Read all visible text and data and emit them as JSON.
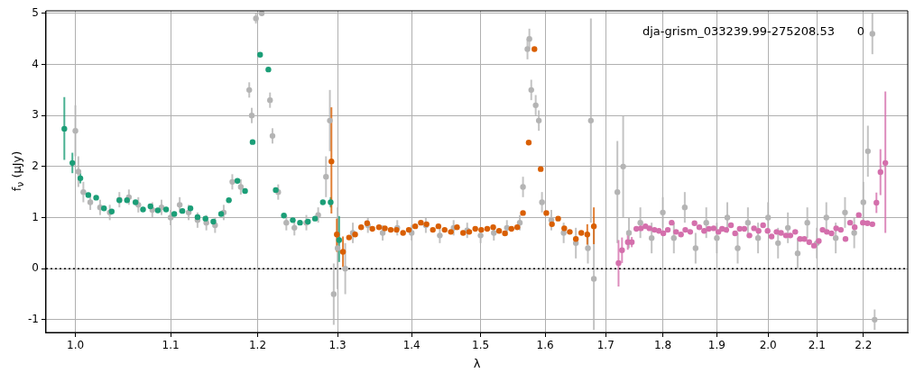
{
  "chart_data": {
    "type": "scatter",
    "xlabel": "λ",
    "ylabel": "f$_{ν}$ (μJy)",
    "log": "x",
    "grid": true,
    "legend": false,
    "marker": "circle",
    "xlim": [
      0.971,
      2.3
    ],
    "xticks": [
      {
        "value": 1,
        "label": "1.0"
      },
      1.1,
      1.2,
      1.3,
      1.4,
      1.5,
      1.6,
      1.7,
      1.8,
      1.9,
      {
        "value": 2,
        "label": "2.0"
      },
      2.1,
      2.2
    ],
    "ylim": [
      -1.25,
      5.05
    ],
    "yticks": [
      -1,
      0,
      1,
      2,
      3,
      4,
      5
    ],
    "ref_lines": [
      {
        "axis": "y",
        "value": 0,
        "color": "#000000",
        "line_style": "dotted"
      }
    ],
    "annotations": [
      "dja-grism_033239.99-275208.53      0"
    ],
    "series": [
      {
        "color": "#b4b4b4",
        "x": [
          1.0,
          1.003,
          1.008,
          1.015,
          1.025,
          1.035,
          1.045,
          1.055,
          1.065,
          1.08,
          1.09,
          1.1,
          1.11,
          1.12,
          1.13,
          1.14,
          1.15,
          1.16,
          1.17,
          1.18,
          1.19,
          1.193,
          1.198,
          1.205,
          1.215,
          1.218,
          1.225,
          1.235,
          1.245,
          1.26,
          1.275,
          1.285,
          1.29,
          1.295,
          1.3,
          1.31,
          1.32,
          1.34,
          1.36,
          1.38,
          1.4,
          1.42,
          1.44,
          1.46,
          1.48,
          1.5,
          1.52,
          1.54,
          1.56,
          1.565,
          1.572,
          1.575,
          1.578,
          1.585,
          1.59,
          1.595,
          1.61,
          1.63,
          1.65,
          1.67,
          1.675,
          1.68,
          1.72,
          1.73,
          1.74,
          1.76,
          1.78,
          1.8,
          1.82,
          1.84,
          1.86,
          1.88,
          1.9,
          1.92,
          1.94,
          1.96,
          1.98,
          2.0,
          2.02,
          2.04,
          2.06,
          2.08,
          2.1,
          2.12,
          2.14,
          2.16,
          2.18,
          2.2,
          2.21,
          2.22,
          2.225
        ],
        "values": [
          2.7,
          1.9,
          1.5,
          1.3,
          1.2,
          1.1,
          1.35,
          1.4,
          1.25,
          1.15,
          1.2,
          1.0,
          1.25,
          1.1,
          0.95,
          0.9,
          0.85,
          1.1,
          1.7,
          1.6,
          3.5,
          3.0,
          4.9,
          5.0,
          3.3,
          2.6,
          1.5,
          0.9,
          0.8,
          0.9,
          1.05,
          1.8,
          2.9,
          -0.5,
          0.4,
          0.0,
          0.7,
          0.85,
          0.7,
          0.8,
          0.7,
          0.85,
          0.65,
          0.8,
          0.75,
          0.65,
          0.7,
          0.8,
          0.9,
          1.6,
          4.3,
          4.5,
          3.5,
          3.2,
          2.9,
          1.3,
          0.95,
          0.7,
          0.5,
          0.4,
          2.9,
          -0.2,
          1.5,
          2.0,
          0.7,
          0.9,
          0.6,
          1.1,
          0.6,
          1.2,
          0.4,
          0.9,
          0.6,
          1.0,
          0.4,
          0.9,
          0.6,
          1.0,
          0.5,
          0.8,
          0.3,
          0.9,
          0.5,
          1.0,
          0.6,
          1.1,
          0.7,
          1.3,
          2.3,
          4.6,
          -1.0
        ],
        "errors": [
          0.5,
          0.3,
          0.2,
          0.15,
          0.15,
          0.15,
          0.15,
          0.15,
          0.15,
          0.15,
          0.15,
          0.15,
          0.15,
          0.15,
          0.15,
          0.15,
          0.15,
          0.15,
          0.15,
          0.15,
          0.15,
          0.15,
          0.1,
          0.05,
          0.15,
          0.15,
          0.15,
          0.15,
          0.15,
          0.15,
          0.15,
          0.4,
          0.6,
          0.6,
          0.8,
          0.5,
          0.2,
          0.15,
          0.15,
          0.15,
          0.15,
          0.15,
          0.15,
          0.15,
          0.15,
          0.15,
          0.15,
          0.15,
          0.15,
          0.2,
          0.2,
          0.2,
          0.2,
          0.2,
          0.2,
          0.2,
          0.2,
          0.2,
          0.3,
          0.3,
          2.0,
          1.0,
          1.0,
          1.0,
          0.3,
          0.3,
          0.3,
          0.3,
          0.3,
          0.3,
          0.3,
          0.3,
          0.3,
          0.3,
          0.3,
          0.3,
          0.3,
          0.3,
          0.3,
          0.3,
          0.3,
          0.3,
          0.3,
          0.3,
          0.3,
          0.3,
          0.3,
          0.4,
          0.5,
          0.4,
          0.2
        ]
      },
      {
        "color": "#1b9e77",
        "x": [
          0.989,
          0.997,
          1.005,
          1.013,
          1.021,
          1.029,
          1.037,
          1.045,
          1.053,
          1.062,
          1.07,
          1.078,
          1.086,
          1.095,
          1.104,
          1.113,
          1.122,
          1.13,
          1.139,
          1.148,
          1.157,
          1.166,
          1.176,
          1.185,
          1.194,
          1.203,
          1.213,
          1.222,
          1.232,
          1.243,
          1.252,
          1.262,
          1.271,
          1.281,
          1.291,
          1.302
        ],
        "values": [
          2.74,
          2.07,
          1.77,
          1.44,
          1.39,
          1.18,
          1.12,
          1.34,
          1.34,
          1.3,
          1.16,
          1.22,
          1.14,
          1.16,
          1.07,
          1.13,
          1.18,
          1.01,
          0.98,
          0.92,
          1.07,
          1.34,
          1.72,
          1.52,
          2.48,
          4.19,
          3.9,
          1.54,
          1.04,
          0.95,
          0.9,
          0.92,
          0.98,
          1.3,
          1.3,
          0.56
        ],
        "errors": [
          [
            2.13,
            3.36
          ],
          [
            1.87,
            2.27
          ],
          0.1,
          null,
          null,
          null,
          null,
          null,
          null,
          null,
          null,
          null,
          null,
          null,
          null,
          null,
          null,
          null,
          null,
          null,
          null,
          null,
          null,
          null,
          null,
          null,
          null,
          null,
          null,
          null,
          null,
          null,
          null,
          null,
          0.1,
          [
            0.13,
            1.03
          ]
        ]
      },
      {
        "color": "#d95f02",
        "x": [
          1.292,
          1.299,
          1.307,
          1.315,
          1.323,
          1.331,
          1.339,
          1.346,
          1.355,
          1.363,
          1.371,
          1.379,
          1.388,
          1.396,
          1.405,
          1.413,
          1.421,
          1.43,
          1.438,
          1.447,
          1.456,
          1.465,
          1.474,
          1.483,
          1.492,
          1.501,
          1.51,
          1.519,
          1.528,
          1.537,
          1.547,
          1.556,
          1.565,
          1.574,
          1.583,
          1.593,
          1.602,
          1.611,
          1.621,
          1.631,
          1.64,
          1.65,
          1.659,
          1.669,
          1.68
        ],
        "values": [
          2.1,
          0.67,
          0.33,
          0.61,
          0.67,
          0.81,
          0.89,
          0.78,
          0.81,
          0.79,
          0.76,
          0.76,
          0.7,
          0.76,
          0.83,
          0.9,
          0.87,
          0.76,
          0.83,
          0.76,
          0.72,
          0.81,
          0.7,
          0.72,
          0.78,
          0.76,
          0.78,
          0.81,
          0.74,
          0.69,
          0.78,
          0.81,
          1.09,
          2.47,
          4.3,
          1.95,
          1.09,
          0.87,
          0.98,
          0.79,
          0.72,
          0.58,
          0.7,
          0.67,
          0.83
        ],
        "errors": [
          [
            1.08,
            3.16
          ],
          [
            0.33,
            0.98
          ],
          0.3,
          null,
          null,
          null,
          null,
          null,
          null,
          null,
          null,
          null,
          null,
          null,
          null,
          null,
          null,
          null,
          null,
          null,
          null,
          null,
          null,
          null,
          null,
          null,
          null,
          null,
          null,
          null,
          null,
          null,
          null,
          null,
          null,
          null,
          null,
          null,
          null,
          null,
          null,
          null,
          null,
          0.2,
          [
            0.48,
            1.2
          ]
        ]
      },
      {
        "color": "#d46fac",
        "x": [
          1.722,
          1.728,
          1.738,
          1.745,
          1.753,
          1.761,
          1.769,
          1.776,
          1.785,
          1.793,
          1.801,
          1.809,
          1.816,
          1.824,
          1.833,
          1.841,
          1.85,
          1.858,
          1.867,
          1.876,
          1.885,
          1.894,
          1.903,
          1.91,
          1.918,
          1.927,
          1.935,
          1.944,
          1.953,
          1.963,
          1.972,
          1.981,
          1.99,
          1.999,
          2.007,
          2.017,
          2.026,
          2.036,
          2.045,
          2.055,
          2.065,
          2.074,
          2.084,
          2.094,
          2.104,
          2.112,
          2.121,
          2.131,
          2.141,
          2.151,
          2.161,
          2.171,
          2.181,
          2.19,
          2.199,
          2.209,
          2.22,
          2.229,
          2.238,
          2.249
        ],
        "values": [
          0.11,
          0.36,
          0.52,
          0.52,
          0.78,
          0.79,
          0.83,
          0.79,
          0.76,
          0.74,
          0.69,
          0.76,
          0.9,
          0.72,
          0.67,
          0.76,
          0.72,
          0.89,
          0.81,
          0.74,
          0.78,
          0.79,
          0.72,
          0.78,
          0.76,
          0.85,
          0.69,
          0.78,
          0.78,
          0.65,
          0.79,
          0.74,
          0.85,
          0.74,
          0.63,
          0.72,
          0.7,
          0.65,
          0.65,
          0.72,
          0.58,
          0.58,
          0.52,
          0.45,
          0.54,
          0.76,
          0.72,
          0.69,
          0.79,
          0.76,
          0.58,
          0.9,
          0.81,
          1.05,
          0.9,
          0.89,
          0.87,
          1.29,
          1.89,
          2.07
        ],
        "errors": [
          [
            -0.35,
            0.56
          ],
          0.25,
          0.15,
          0.1,
          null,
          null,
          null,
          null,
          null,
          null,
          null,
          null,
          null,
          null,
          null,
          null,
          null,
          null,
          null,
          null,
          null,
          null,
          null,
          null,
          null,
          null,
          null,
          null,
          null,
          null,
          null,
          null,
          null,
          null,
          null,
          null,
          null,
          null,
          null,
          null,
          null,
          null,
          null,
          null,
          null,
          null,
          null,
          null,
          null,
          null,
          null,
          null,
          null,
          null,
          null,
          null,
          null,
          0.2,
          0.45,
          [
            0.7,
            3.47
          ]
        ]
      }
    ]
  }
}
